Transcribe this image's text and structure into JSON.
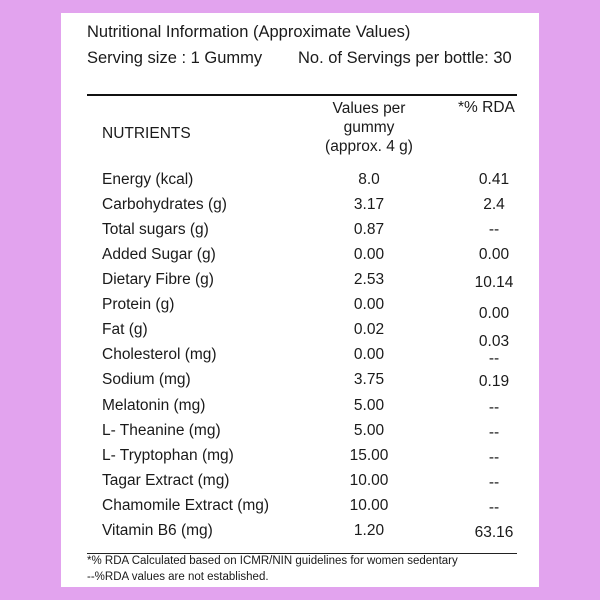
{
  "header": {
    "title": "Nutritional Information (Approximate Values)",
    "serving_size": "Serving size : 1 Gummy",
    "servings_per_bottle": "No. of Servings per bottle: 30"
  },
  "table": {
    "col_nutrients": "NUTRIENTS",
    "col_values_line1": "Values per",
    "col_values_line2": "gummy",
    "col_values_line3": "(approx. 4 g)",
    "col_rda": "*% RDA",
    "rows": [
      {
        "nutrient": "Energy (kcal)",
        "value": "8.0",
        "rda": "0.41"
      },
      {
        "nutrient": "Carbohydrates (g)",
        "value": "3.17",
        "rda": "2.4"
      },
      {
        "nutrient": "Total sugars (g)",
        "value": "0.87",
        "rda": "--"
      },
      {
        "nutrient": "Added Sugar (g)",
        "value": "0.00",
        "rda": "0.00"
      },
      {
        "nutrient": "Dietary Fibre (g)",
        "value": "2.53",
        "rda": "10.14"
      },
      {
        "nutrient": "Protein (g)",
        "value": "0.00",
        "rda": "0.00"
      },
      {
        "nutrient": "Fat (g)",
        "value": "0.02",
        "rda": "0.03"
      },
      {
        "nutrient": "Cholesterol (mg)",
        "value": "0.00",
        "rda": "--"
      },
      {
        "nutrient": "Sodium (mg)",
        "value": "3.75",
        "rda": "0.19"
      },
      {
        "nutrient": "Melatonin (mg)",
        "value": "5.00",
        "rda": "--"
      },
      {
        "nutrient": "L- Theanine (mg)",
        "value": "5.00",
        "rda": "--"
      },
      {
        "nutrient": "L- Tryptophan (mg)",
        "value": "15.00",
        "rda": "--"
      },
      {
        "nutrient": "Tagar Extract (mg)",
        "value": "10.00",
        "rda": "--"
      },
      {
        "nutrient": "Chamomile Extract (mg)",
        "value": "10.00",
        "rda": "--"
      },
      {
        "nutrient": "Vitamin B6 (mg)",
        "value": "1.20",
        "rda": "63.16"
      }
    ]
  },
  "footnotes": {
    "note1": "*% RDA Calculated based on ICMR/NIN guidelines for women sedentary",
    "note2": "--%RDA values are not established."
  }
}
